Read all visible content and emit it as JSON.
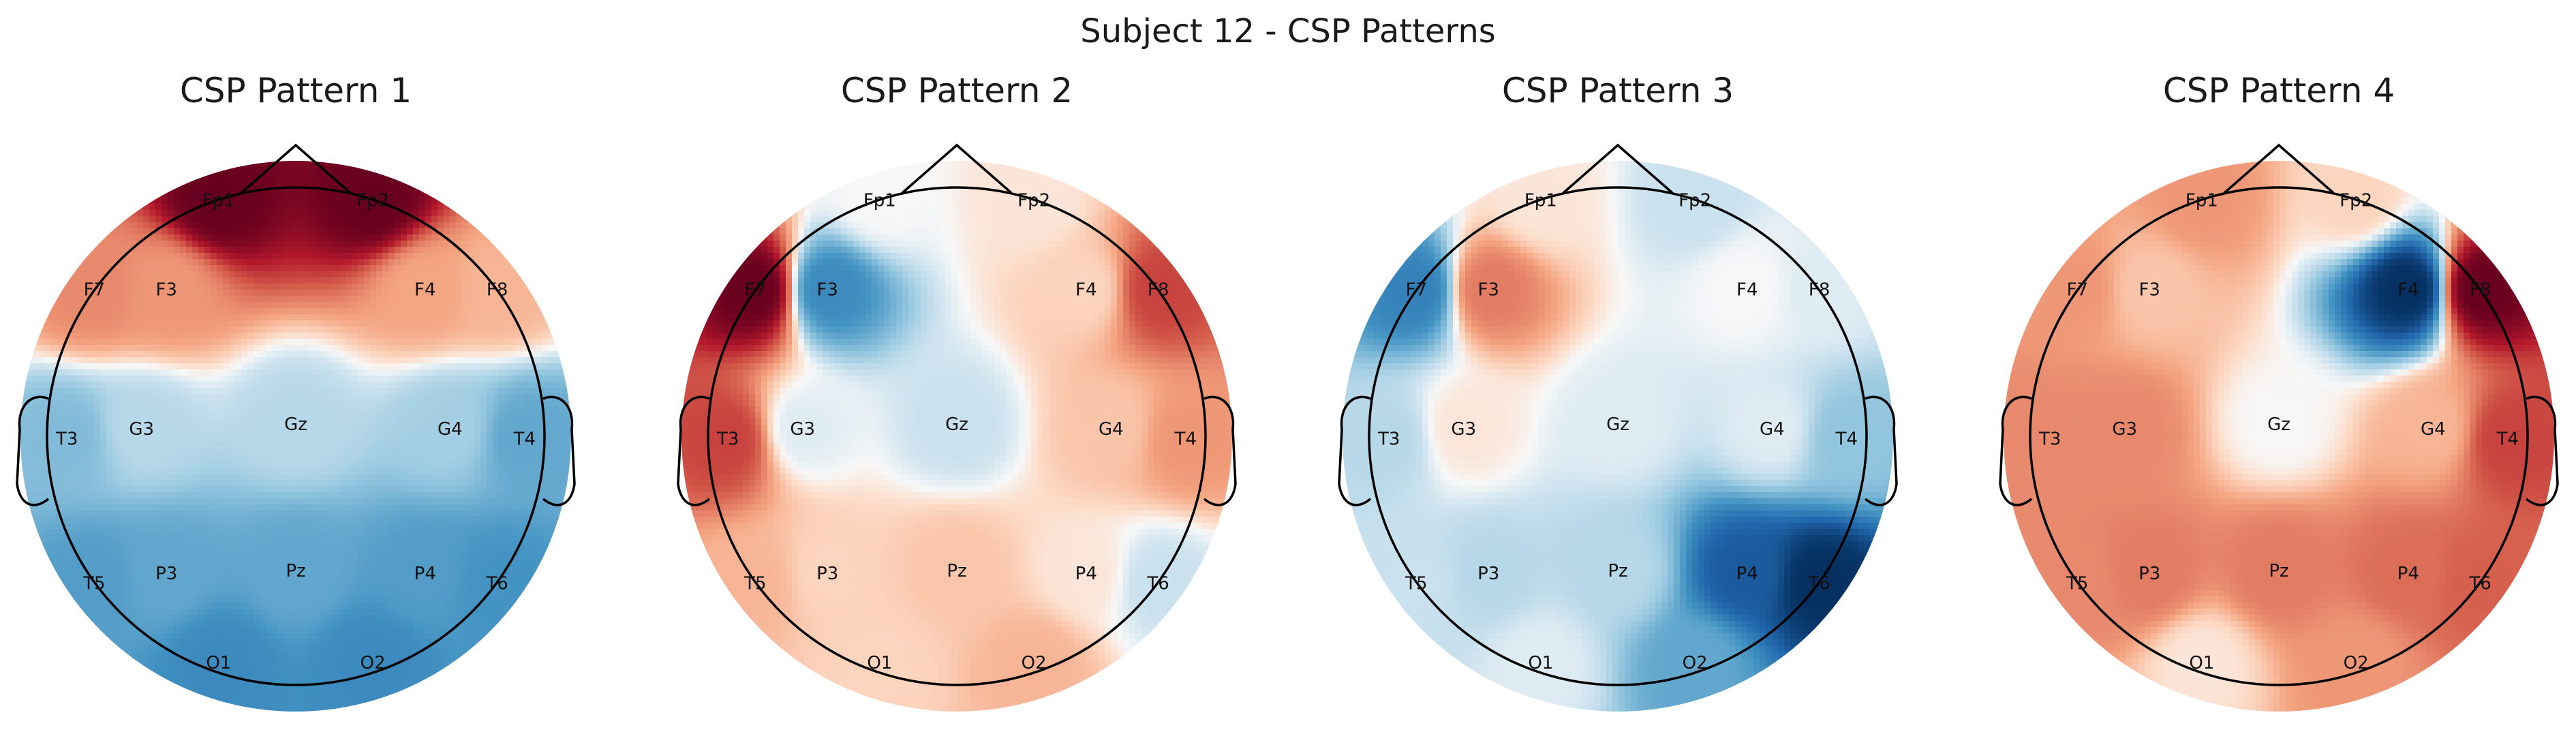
{
  "figure_title": "Subject 12 - CSP Patterns",
  "colormap": {
    "name": "RdBu_r",
    "negative": "#053061",
    "neutral": "#f7f7f7",
    "positive": "#67001f"
  },
  "chart_data": [
    {
      "type": "heatmap",
      "subtype": "topomap",
      "title": "CSP Pattern 1",
      "channels": [
        {
          "name": "Fp1",
          "value": 1.0
        },
        {
          "name": "Fp2",
          "value": 1.0
        },
        {
          "name": "F7",
          "value": 0.35
        },
        {
          "name": "F3",
          "value": 0.3
        },
        {
          "name": "F4",
          "value": 0.25
        },
        {
          "name": "F8",
          "value": 0.2
        },
        {
          "name": "C3",
          "value": -0.15
        },
        {
          "name": "Cz",
          "value": -0.15
        },
        {
          "name": "C4",
          "value": -0.2
        },
        {
          "name": "T3",
          "value": -0.3
        },
        {
          "name": "T4",
          "value": -0.4
        },
        {
          "name": "T5",
          "value": -0.45
        },
        {
          "name": "P3",
          "value": -0.4
        },
        {
          "name": "Pz",
          "value": -0.4
        },
        {
          "name": "P4",
          "value": -0.45
        },
        {
          "name": "T6",
          "value": -0.5
        },
        {
          "name": "O1",
          "value": -0.55
        },
        {
          "name": "O2",
          "value": -0.55
        }
      ]
    },
    {
      "type": "heatmap",
      "subtype": "topomap",
      "title": "CSP Pattern 2",
      "channels": [
        {
          "name": "Fp1",
          "value": 0.0
        },
        {
          "name": "Fp2",
          "value": 0.05
        },
        {
          "name": "F7",
          "value": 1.0
        },
        {
          "name": "F3",
          "value": -0.55
        },
        {
          "name": "F4",
          "value": 0.1
        },
        {
          "name": "F8",
          "value": 0.6
        },
        {
          "name": "C3",
          "value": -0.05
        },
        {
          "name": "Cz",
          "value": -0.1
        },
        {
          "name": "C4",
          "value": 0.15
        },
        {
          "name": "T3",
          "value": 0.6
        },
        {
          "name": "T4",
          "value": 0.3
        },
        {
          "name": "T5",
          "value": 0.2
        },
        {
          "name": "P3",
          "value": 0.1
        },
        {
          "name": "Pz",
          "value": 0.15
        },
        {
          "name": "P4",
          "value": 0.05
        },
        {
          "name": "T6",
          "value": -0.1
        },
        {
          "name": "O1",
          "value": 0.1
        },
        {
          "name": "O2",
          "value": 0.2
        }
      ]
    },
    {
      "type": "heatmap",
      "subtype": "topomap",
      "title": "CSP Pattern 3",
      "channels": [
        {
          "name": "Fp1",
          "value": 0.05
        },
        {
          "name": "Fp2",
          "value": -0.1
        },
        {
          "name": "F7",
          "value": -0.6
        },
        {
          "name": "F3",
          "value": 0.4
        },
        {
          "name": "F4",
          "value": 0.0
        },
        {
          "name": "F8",
          "value": -0.05
        },
        {
          "name": "C3",
          "value": 0.05
        },
        {
          "name": "Cz",
          "value": -0.05
        },
        {
          "name": "C4",
          "value": -0.05
        },
        {
          "name": "T3",
          "value": -0.15
        },
        {
          "name": "T4",
          "value": -0.25
        },
        {
          "name": "T5",
          "value": -0.1
        },
        {
          "name": "P3",
          "value": -0.15
        },
        {
          "name": "Pz",
          "value": -0.15
        },
        {
          "name": "P4",
          "value": -0.8
        },
        {
          "name": "T6",
          "value": -1.0
        },
        {
          "name": "O1",
          "value": -0.05
        },
        {
          "name": "O2",
          "value": -0.4
        }
      ]
    },
    {
      "type": "heatmap",
      "subtype": "topomap",
      "title": "CSP Pattern 4",
      "channels": [
        {
          "name": "Fp1",
          "value": 0.3
        },
        {
          "name": "Fp2",
          "value": 0.1
        },
        {
          "name": "F7",
          "value": 0.3
        },
        {
          "name": "F3",
          "value": 0.15
        },
        {
          "name": "F4",
          "value": -1.0
        },
        {
          "name": "F8",
          "value": 1.0
        },
        {
          "name": "C3",
          "value": 0.35
        },
        {
          "name": "Cz",
          "value": 0.0
        },
        {
          "name": "C4",
          "value": 0.2
        },
        {
          "name": "T3",
          "value": 0.35
        },
        {
          "name": "T4",
          "value": 0.6
        },
        {
          "name": "T5",
          "value": 0.35
        },
        {
          "name": "P3",
          "value": 0.4
        },
        {
          "name": "Pz",
          "value": 0.4
        },
        {
          "name": "P4",
          "value": 0.45
        },
        {
          "name": "T6",
          "value": 0.5
        },
        {
          "name": "O1",
          "value": 0.05
        },
        {
          "name": "O2",
          "value": 0.3
        }
      ]
    }
  ]
}
